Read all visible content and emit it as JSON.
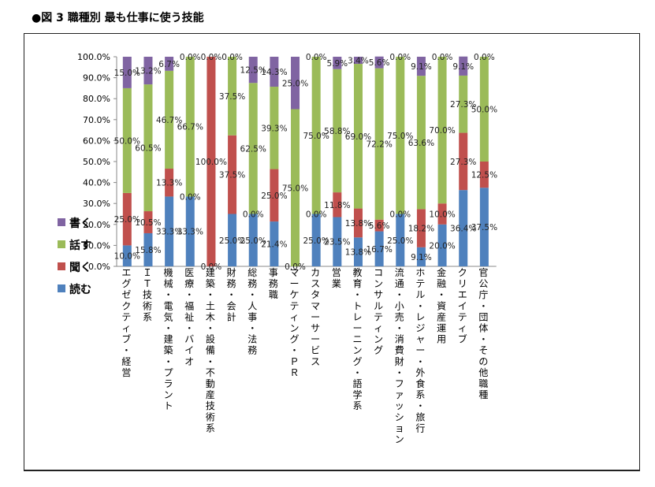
{
  "figure": {
    "title": "●図 3  職種別  最も仕事に使う技能"
  },
  "colors": {
    "読む": "#4f81bd",
    "聞く": "#c0504d",
    "話す": "#9bbb59",
    "書く": "#8064a2"
  },
  "chart_data": {
    "type": "bar",
    "stacked": true,
    "percent": true,
    "title": "",
    "xlabel": "",
    "ylabel": "",
    "ylim": [
      0,
      100
    ],
    "yticks": [
      "0.0%",
      "10.0%",
      "20.0%",
      "30.0%",
      "40.0%",
      "50.0%",
      "60.0%",
      "70.0%",
      "80.0%",
      "90.0%",
      "100.0%"
    ],
    "grid": false,
    "legend_position": "left",
    "legend_order": [
      "書く",
      "話す",
      "聞く",
      "読む"
    ],
    "categories": [
      "エグゼクティブ・経営",
      "ＩＴ技術系",
      "機械・電気・建築・プラント",
      "医療・福祉・バイオ",
      "建築・土木・設備・不動産技術系",
      "財務・会計",
      "総務・人事・法務",
      "事務職",
      "マーケティング・ＰＲ",
      "カスタマーサービス",
      "営業",
      "教育・トレーニング・語学系",
      "コンサルティング",
      "流通・小売・消費財・ファッション",
      "ホテル・レジャー・外食系・旅行",
      "金融・資産運用",
      "クリエイティブ",
      "官公庁・団体・その他職種"
    ],
    "series": [
      {
        "name": "読む",
        "values": [
          10.0,
          15.8,
          33.3,
          33.3,
          0.0,
          25.0,
          25.0,
          21.4,
          0.0,
          25.0,
          23.5,
          13.8,
          16.7,
          25.0,
          9.1,
          20.0,
          36.4,
          37.5
        ],
        "labels": [
          "10.0%",
          "15.8%",
          "33.3%",
          "33.3%",
          "0.0%",
          "25.0%",
          "25.0%",
          "21.4%",
          "0.0%",
          "25.0%",
          "23.5%",
          "13.8%",
          "16.7%",
          "25.0%",
          "9.1%",
          "20.0%",
          "36.4%",
          "37.5%"
        ]
      },
      {
        "name": "聞く",
        "values": [
          25.0,
          10.5,
          13.3,
          0.0,
          100.0,
          37.5,
          0.0,
          25.0,
          0.0,
          0.0,
          11.8,
          13.8,
          5.6,
          0.0,
          18.2,
          10.0,
          27.3,
          12.5
        ],
        "labels": [
          "25.0%",
          "10.5%",
          "13.3%",
          "0.0%",
          "100.0%",
          "37.5%",
          "0.0%",
          "25.0%",
          "",
          "0.0%",
          "11.8%",
          "13.8%",
          "5.6%",
          "0.0%",
          "18.2%",
          "10.0%",
          "27.3%",
          "12.5%"
        ]
      },
      {
        "name": "話す",
        "values": [
          50.0,
          60.5,
          46.7,
          66.7,
          0.0,
          37.5,
          62.5,
          39.3,
          75.0,
          75.0,
          58.8,
          69.0,
          72.2,
          75.0,
          63.6,
          70.0,
          27.3,
          50.0
        ],
        "labels": [
          "50.0%",
          "60.5%",
          "46.7%",
          "66.7%",
          "",
          "37.5%",
          "62.5%",
          "39.3%",
          "75.0%",
          "75.0%",
          "58.8%",
          "69.0%",
          "72.2%",
          "75.0%",
          "63.6%",
          "70.0%",
          "27.3%",
          "50.0%"
        ]
      },
      {
        "name": "書く",
        "values": [
          15.0,
          13.2,
          6.7,
          0.0,
          0.0,
          0.0,
          12.5,
          14.3,
          25.0,
          0.0,
          5.9,
          3.4,
          5.6,
          0.0,
          9.1,
          0.0,
          9.1,
          0.0
        ],
        "labels": [
          "15.0%",
          "13.2%",
          "6.7%",
          "0.0%",
          "0.0%",
          "0.0%",
          "12.5%",
          "14.3%",
          "25.0%",
          "0.0%",
          "5.9%",
          "3.4%",
          "5.6%",
          "0.0%",
          "9.1%",
          "0.0%",
          "9.1%",
          "0.0%"
        ]
      }
    ]
  }
}
